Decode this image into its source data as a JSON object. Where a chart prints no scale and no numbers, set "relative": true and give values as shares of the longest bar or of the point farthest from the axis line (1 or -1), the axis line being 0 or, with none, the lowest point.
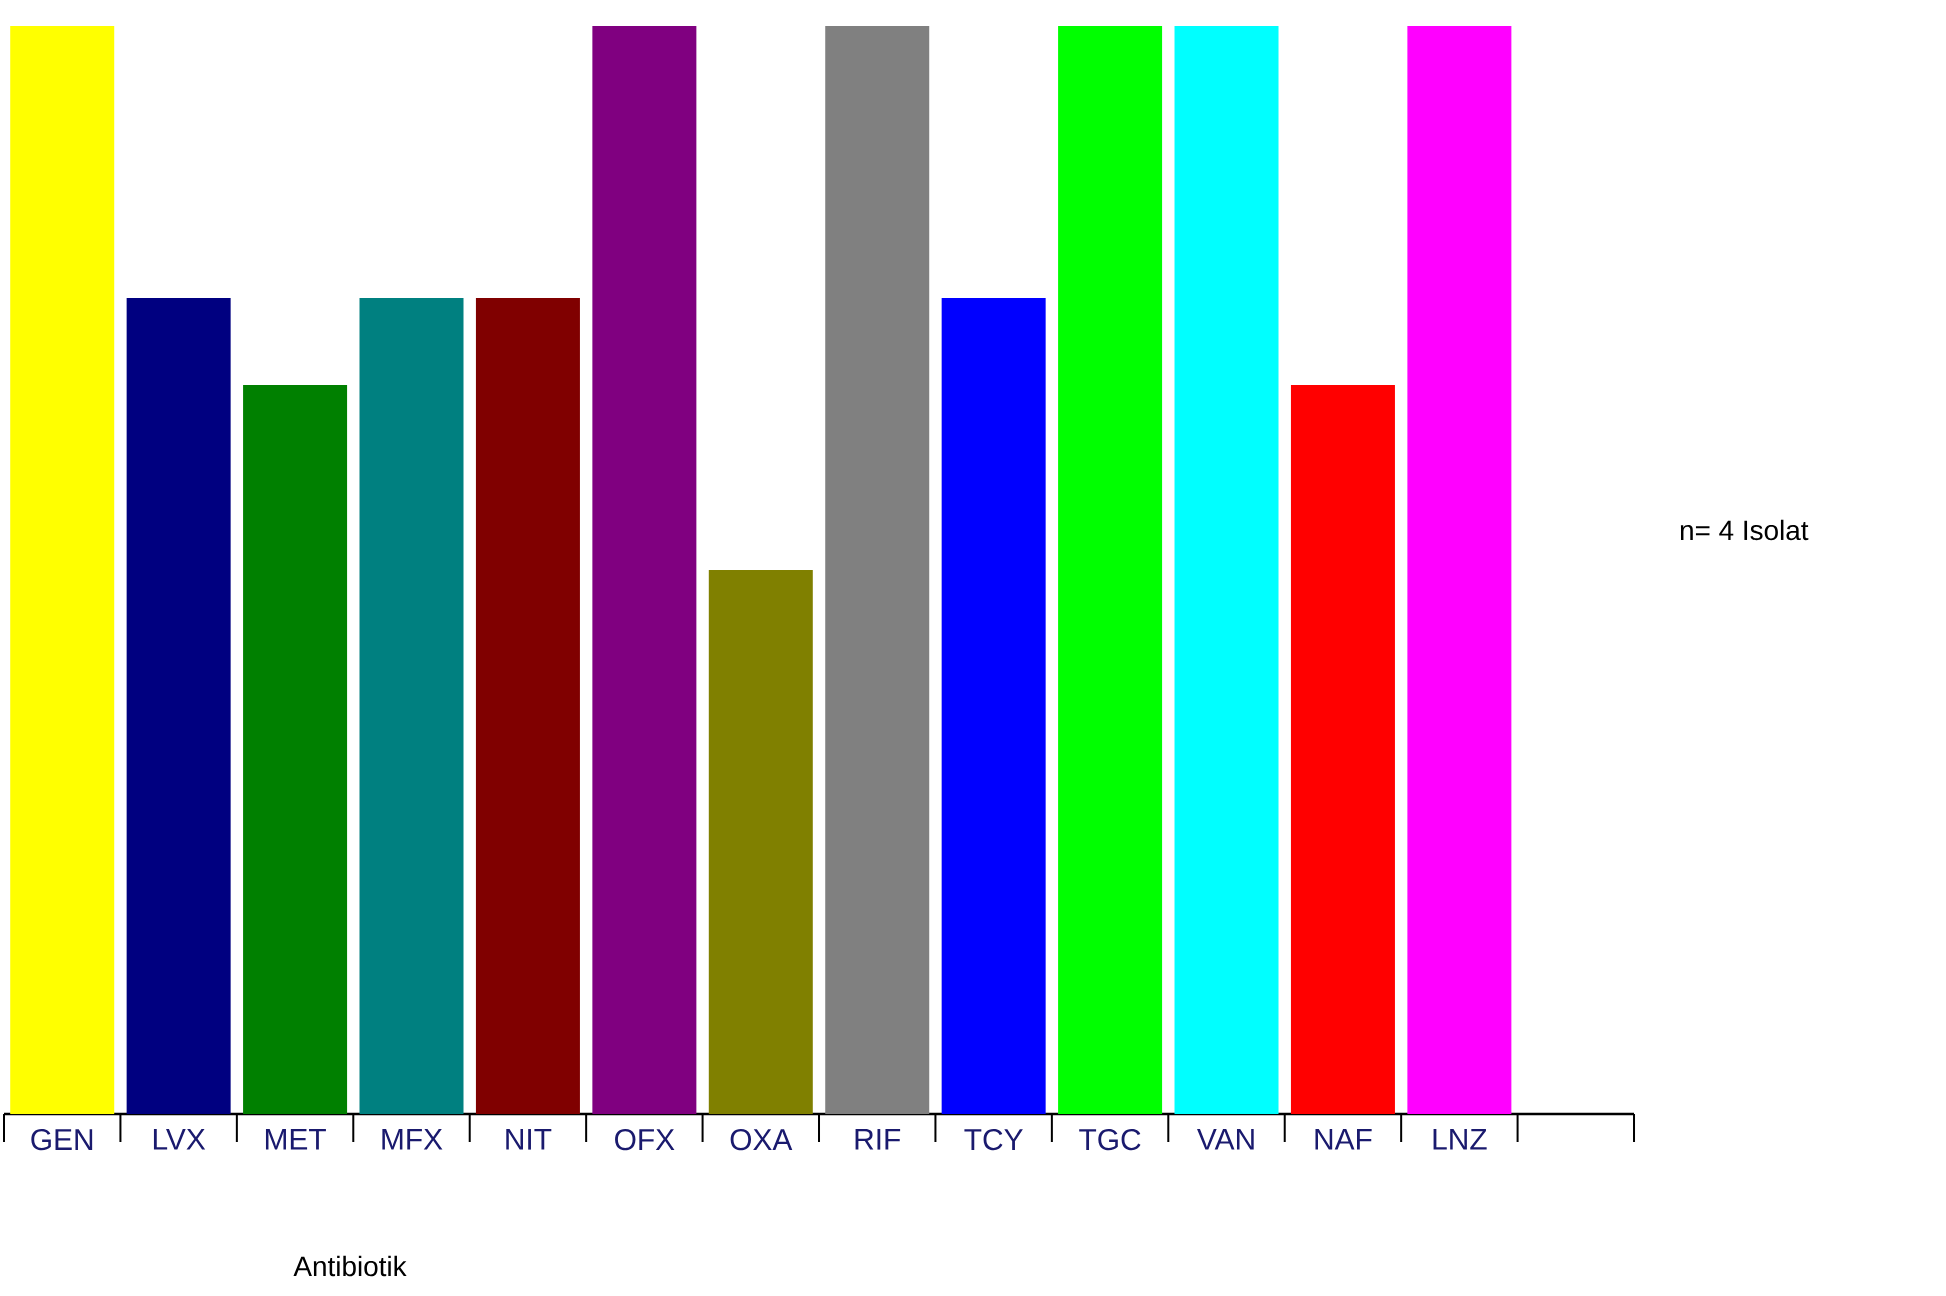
{
  "chart_data": {
    "type": "bar",
    "relative": true,
    "xlabel": "Antibiotik",
    "annotations": [
      "n= 4 Isolat"
    ],
    "categories": [
      "GEN",
      "LVX",
      "MET",
      "MFX",
      "NIT",
      "OFX",
      "OXA",
      "RIF",
      "TCY",
      "TGC",
      "VAN",
      "NAF",
      "LNZ",
      null
    ],
    "values": [
      1,
      0.75,
      0.67,
      0.75,
      0.75,
      1,
      0.5,
      1,
      0.75,
      1,
      1,
      0.67,
      1,
      null
    ],
    "colors": [
      "#ffff00",
      "#000080",
      "#008000",
      "#008080",
      "#800000",
      "#800080",
      "#808000",
      "#808080",
      "#0000ff",
      "#00ff00",
      "#00ffff",
      "#ff0000",
      "#ff00ff",
      null
    ],
    "stacked": false
  }
}
